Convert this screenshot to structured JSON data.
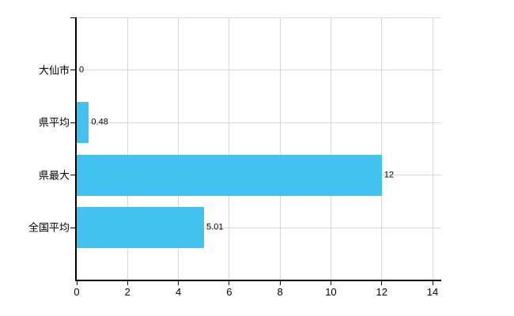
{
  "chart_data": {
    "type": "bar",
    "orientation": "horizontal",
    "title": "",
    "categories": [
      "大仙市",
      "県平均",
      "県最大",
      "全国平均"
    ],
    "values": [
      0,
      0.48,
      12,
      5.01
    ],
    "value_labels": [
      "0",
      "0.48",
      "12",
      "5.01"
    ],
    "x_ticks": [
      0,
      2,
      4,
      6,
      8,
      10,
      12,
      14
    ],
    "x_tick_labels": [
      "0",
      "2",
      "4",
      "6",
      "8",
      "10",
      "12",
      "14"
    ],
    "xlim": [
      0,
      14
    ],
    "grid": true,
    "legend": false,
    "colors": {
      "bar": "#41c2ef",
      "axis": "#000000",
      "gridline": "#d9d9d9",
      "text": "#000000",
      "background": "#ffffff"
    }
  }
}
